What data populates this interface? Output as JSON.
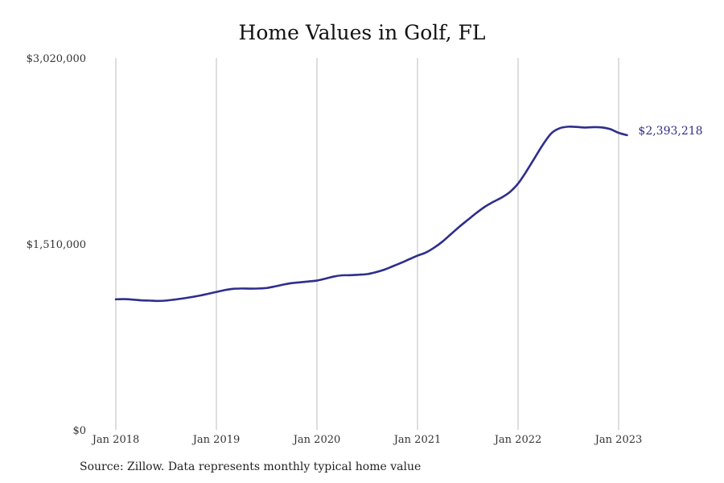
{
  "chart_data": {
    "type": "line",
    "title": "Home Values in Golf, FL",
    "xlabel": "",
    "ylabel": "",
    "ylim": [
      0,
      3020000
    ],
    "y_ticks": [
      "$0",
      "$1,510,000",
      "$3,020,000"
    ],
    "y_tick_values": [
      0,
      1510000,
      3020000
    ],
    "x_ticks": [
      "Jan 2018",
      "Jan 2019",
      "Jan 2020",
      "Jan 2021",
      "Jan 2022",
      "Jan 2023"
    ],
    "x_tick_values": [
      "2018-01",
      "2019-01",
      "2020-01",
      "2021-01",
      "2022-01",
      "2023-01"
    ],
    "grid": "vertical",
    "series": [
      {
        "name": "",
        "color": "#2e2e8c",
        "end_label": "$2,393,218",
        "x": [
          "2018-01",
          "2018-02",
          "2018-03",
          "2018-04",
          "2018-05",
          "2018-06",
          "2018-07",
          "2018-08",
          "2018-09",
          "2018-10",
          "2018-11",
          "2018-12",
          "2019-01",
          "2019-02",
          "2019-03",
          "2019-04",
          "2019-05",
          "2019-06",
          "2019-07",
          "2019-08",
          "2019-09",
          "2019-10",
          "2019-11",
          "2019-12",
          "2020-01",
          "2020-02",
          "2020-03",
          "2020-04",
          "2020-05",
          "2020-06",
          "2020-07",
          "2020-08",
          "2020-09",
          "2020-10",
          "2020-11",
          "2020-12",
          "2021-01",
          "2021-02",
          "2021-03",
          "2021-04",
          "2021-05",
          "2021-06",
          "2021-07",
          "2021-08",
          "2021-09",
          "2021-10",
          "2021-11",
          "2021-12",
          "2022-01",
          "2022-02",
          "2022-03",
          "2022-04",
          "2022-05",
          "2022-06",
          "2022-07",
          "2022-08",
          "2022-09",
          "2022-10",
          "2022-11",
          "2022-12",
          "2023-01",
          "2023-02"
        ],
        "values": [
          1060000,
          1062000,
          1058000,
          1052000,
          1050000,
          1047000,
          1050000,
          1058000,
          1067000,
          1078000,
          1090000,
          1105000,
          1120000,
          1135000,
          1145000,
          1148000,
          1147000,
          1148000,
          1152000,
          1165000,
          1180000,
          1192000,
          1198000,
          1205000,
          1212000,
          1228000,
          1245000,
          1255000,
          1256000,
          1260000,
          1265000,
          1280000,
          1300000,
          1327000,
          1355000,
          1385000,
          1415000,
          1440000,
          1480000,
          1530000,
          1590000,
          1650000,
          1705000,
          1760000,
          1810000,
          1850000,
          1885000,
          1930000,
          2000000,
          2100000,
          2210000,
          2320000,
          2410000,
          2450000,
          2462000,
          2460000,
          2455000,
          2458000,
          2456000,
          2442000,
          2412000,
          2393218
        ]
      }
    ],
    "source": "Source: Zillow. Data represents monthly typical home value"
  }
}
